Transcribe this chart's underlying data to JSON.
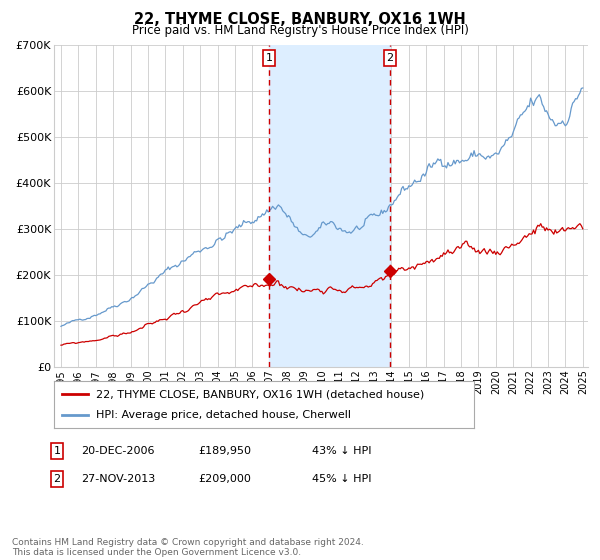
{
  "title": "22, THYME CLOSE, BANBURY, OX16 1WH",
  "subtitle": "Price paid vs. HM Land Registry's House Price Index (HPI)",
  "legend_label_red": "22, THYME CLOSE, BANBURY, OX16 1WH (detached house)",
  "legend_label_blue": "HPI: Average price, detached house, Cherwell",
  "annotation1_date": "20-DEC-2006",
  "annotation1_price": "£189,950",
  "annotation1_hpi": "43% ↓ HPI",
  "annotation2_date": "27-NOV-2013",
  "annotation2_price": "£209,000",
  "annotation2_hpi": "45% ↓ HPI",
  "footer": "Contains HM Land Registry data © Crown copyright and database right 2024.\nThis data is licensed under the Open Government Licence v3.0.",
  "red_color": "#cc0000",
  "blue_color": "#6699cc",
  "shade_color": "#ddeeff",
  "vline_color": "#cc0000",
  "grid_color": "#cccccc",
  "bg_color": "#ffffff",
  "ylim": [
    0,
    700000
  ],
  "ytick_labels": [
    "£0",
    "£100K",
    "£200K",
    "£300K",
    "£400K",
    "£500K",
    "£600K",
    "£700K"
  ],
  "ytick_values": [
    0,
    100000,
    200000,
    300000,
    400000,
    500000,
    600000,
    700000
  ],
  "sale1_year": 2006.97,
  "sale1_value": 189950,
  "sale2_year": 2013.91,
  "sale2_value": 209000,
  "xmin": 1994.6,
  "xmax": 2025.3
}
